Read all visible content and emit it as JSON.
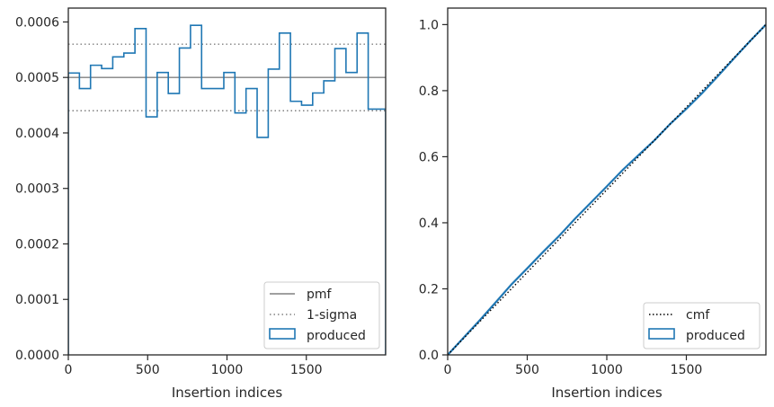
{
  "chart_data": [
    {
      "type": "step-histogram",
      "xlabel": "Insertion indices",
      "ylabel": "",
      "xlim": [
        0,
        2000
      ],
      "ylim": [
        0,
        0.000625
      ],
      "xticks": [
        0,
        500,
        1000,
        1500
      ],
      "xtick_labels": [
        "0",
        "500",
        "1000",
        "1500"
      ],
      "yticks": [
        0,
        0.0001,
        0.0002,
        0.0003,
        0.0004,
        0.0005,
        0.0006
      ],
      "ytick_labels": [
        "0.0000",
        "0.0001",
        "0.0002",
        "0.0003",
        "0.0004",
        "0.0005",
        "0.0006"
      ],
      "grid": false,
      "legend_position": "bottom-right",
      "bin_edges": [
        0,
        70,
        140,
        210,
        280,
        350,
        420,
        490,
        560,
        630,
        700,
        770,
        840,
        910,
        980,
        1050,
        1120,
        1190,
        1260,
        1330,
        1400,
        1470,
        1540,
        1610,
        1680,
        1750,
        1820,
        1890,
        2000
      ],
      "series": [
        {
          "name": "pmf",
          "style": "solid",
          "color": "#808080",
          "y": 0.0005
        },
        {
          "name": "1-sigma",
          "style": "dotted",
          "color": "#808080",
          "y_values": [
            0.00056,
            0.00044
          ]
        },
        {
          "name": "produced",
          "style": "step",
          "color": "#1f77b4",
          "values": [
            0.000508,
            0.00048,
            0.000522,
            0.000516,
            0.000537,
            0.000544,
            0.000588,
            0.000429,
            0.000509,
            0.000471,
            0.000553,
            0.000594,
            0.00048,
            0.00048,
            0.000509,
            0.000436,
            0.00048,
            0.000392,
            0.000515,
            0.00058,
            0.000457,
            0.00045,
            0.000472,
            0.000494,
            0.000552,
            0.000509,
            0.00058,
            0.000443
          ]
        }
      ]
    },
    {
      "type": "line",
      "xlabel": "Insertion indices",
      "ylabel": "",
      "xlim": [
        0,
        2000
      ],
      "ylim": [
        0,
        1.05
      ],
      "xticks": [
        0,
        500,
        1000,
        1500
      ],
      "xtick_labels": [
        "0",
        "500",
        "1000",
        "1500"
      ],
      "yticks": [
        0,
        0.2,
        0.4,
        0.6,
        0.8,
        1.0
      ],
      "ytick_labels": [
        "0.0",
        "0.2",
        "0.4",
        "0.6",
        "0.8",
        "1.0"
      ],
      "grid": false,
      "legend_position": "bottom-right",
      "series": [
        {
          "name": "cmf",
          "style": "dotted",
          "color": "#000000",
          "x": [
            0,
            2000
          ],
          "y": [
            0,
            1
          ]
        },
        {
          "name": "produced",
          "style": "solid",
          "color": "#1f77b4",
          "x": [
            0,
            100,
            200,
            300,
            400,
            500,
            600,
            700,
            800,
            900,
            1000,
            1100,
            1200,
            1300,
            1400,
            1500,
            1600,
            1700,
            1800,
            1900,
            2000
          ],
          "y": [
            0,
            0.052,
            0.104,
            0.158,
            0.213,
            0.262,
            0.312,
            0.36,
            0.412,
            0.461,
            0.51,
            0.56,
            0.605,
            0.65,
            0.7,
            0.745,
            0.793,
            0.845,
            0.898,
            0.95,
            1.0
          ]
        }
      ]
    }
  ]
}
